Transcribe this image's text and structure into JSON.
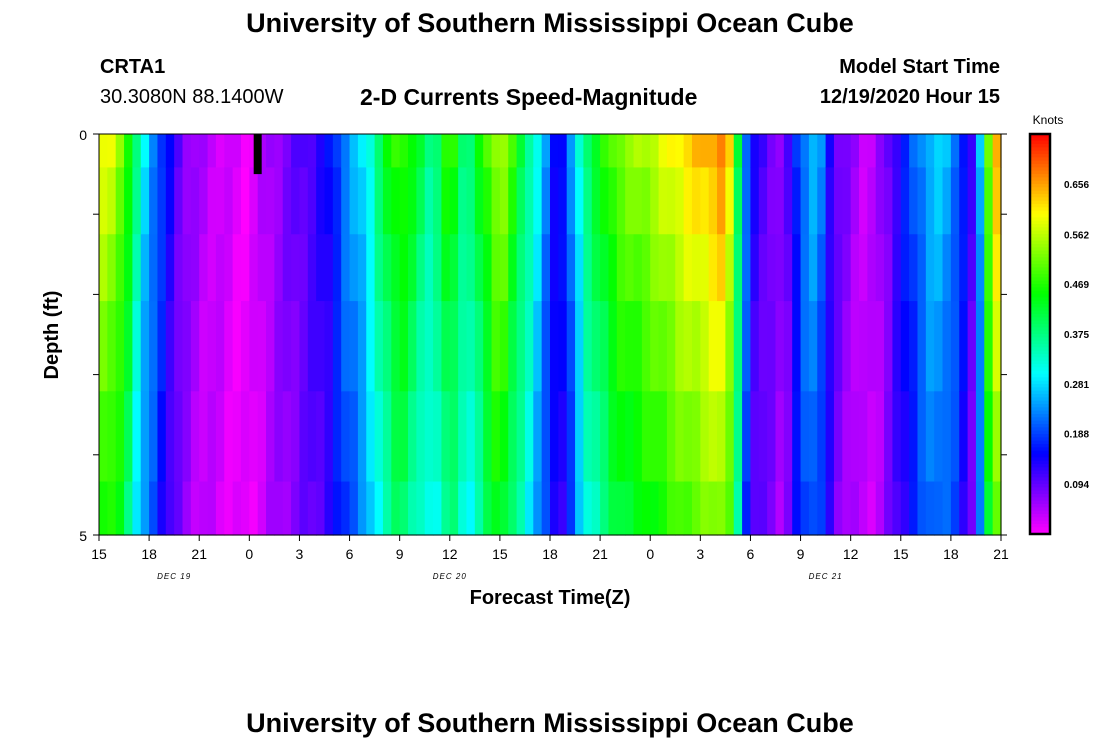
{
  "header": {
    "title": "University of Southern Mississippi Ocean Cube",
    "footer_title": "University of Southern Mississippi Ocean Cube",
    "station_id": "CRTA1",
    "station_coords": "30.3080N 88.1400W",
    "chart_title": "2-D Currents Speed-Magnitude",
    "start_label": "Model Start Time",
    "start_value": "12/19/2020 Hour 15"
  },
  "chart_data": {
    "type": "heatmap",
    "title": "2-D Currents Speed-Magnitude",
    "xlabel": "Forecast Time(Z)",
    "ylabel": "Depth (ft)",
    "ylim": [
      0,
      5
    ],
    "y_ticks": [
      "0",
      "5"
    ],
    "x_hours_span": 54,
    "x_tick_labels": [
      "15",
      "18",
      "21",
      "0",
      "3",
      "6",
      "9",
      "12",
      "15",
      "18",
      "21",
      "0",
      "3",
      "6",
      "9",
      "12",
      "15",
      "18",
      "21"
    ],
    "date_labels": [
      {
        "text": "DEC 19",
        "hour": 4.5
      },
      {
        "text": "DEC 20",
        "hour": 21
      },
      {
        "text": "DEC 21",
        "hour": 43.5
      }
    ],
    "colorbar": {
      "title": "Knots",
      "range": [
        0,
        0.75
      ],
      "ticks": [
        "0.656",
        "0.562",
        "0.469",
        "0.375",
        "0.281",
        "0.188",
        "0.094"
      ],
      "tick_values": [
        0.656,
        0.562,
        0.469,
        0.375,
        0.281,
        0.188,
        0.094
      ]
    },
    "depth_layers": 6,
    "depth_weights": [
      1,
      2,
      2,
      2.7,
      2.7,
      1.6
    ],
    "profile_knots": [
      [
        0,
        0.58
      ],
      [
        0.5,
        0.6
      ],
      [
        1.5,
        0.52
      ],
      [
        2,
        0.42
      ],
      [
        2.5,
        0.32
      ],
      [
        3,
        0.26
      ],
      [
        4,
        0.16
      ],
      [
        5,
        0.08
      ],
      [
        6,
        0.05
      ],
      [
        8,
        0.02
      ],
      [
        9,
        0.01
      ],
      [
        10,
        0.05
      ],
      [
        12,
        0.1
      ],
      [
        13,
        0.12
      ],
      [
        14,
        0.16
      ],
      [
        14.5,
        0.22
      ],
      [
        15,
        0.24
      ],
      [
        16,
        0.3
      ],
      [
        17,
        0.42
      ],
      [
        18,
        0.5
      ],
      [
        19,
        0.43
      ],
      [
        20,
        0.36
      ],
      [
        21,
        0.5
      ],
      [
        22,
        0.36
      ],
      [
        23,
        0.47
      ],
      [
        24,
        0.57
      ],
      [
        25,
        0.45
      ],
      [
        26,
        0.34
      ],
      [
        27,
        0.2
      ],
      [
        27.5,
        0.12
      ],
      [
        28,
        0.2
      ],
      [
        28.5,
        0.26
      ],
      [
        29,
        0.38
      ],
      [
        31,
        0.52
      ],
      [
        33,
        0.56
      ],
      [
        35,
        0.62
      ],
      [
        36,
        0.64
      ],
      [
        37.5,
        0.68
      ],
      [
        38,
        0.55
      ],
      [
        38.5,
        0.3
      ],
      [
        39,
        0.14
      ],
      [
        41,
        0.06
      ],
      [
        42,
        0.22
      ],
      [
        43,
        0.27
      ],
      [
        44,
        0.1
      ],
      [
        46,
        0.03
      ],
      [
        47,
        0.07
      ],
      [
        48,
        0.15
      ],
      [
        49,
        0.22
      ],
      [
        50,
        0.28
      ],
      [
        51,
        0.25
      ],
      [
        52,
        0.14
      ],
      [
        52.5,
        0.08
      ],
      [
        53,
        0.45
      ],
      [
        53.5,
        0.6
      ],
      [
        54,
        0.7
      ]
    ],
    "surface_gap": {
      "hour": 9.5,
      "depth_range": [
        0,
        0.5
      ],
      "color": "#000000"
    },
    "colors": {
      "frame": "#000000",
      "background": "#ffffff"
    }
  }
}
